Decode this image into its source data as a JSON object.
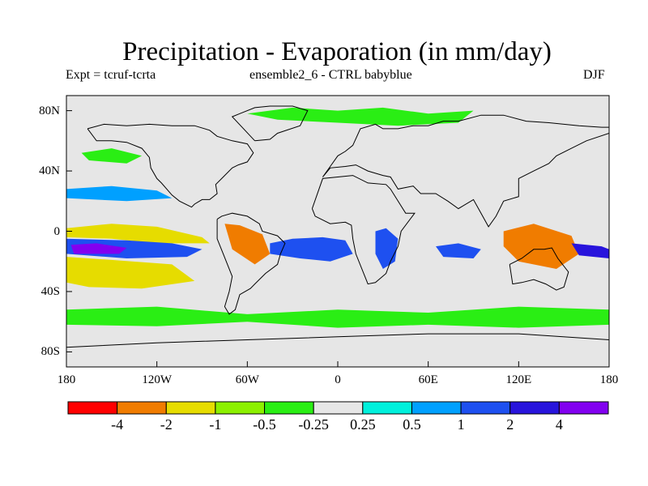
{
  "figure": {
    "title": "Precipitation - Evaporation (in mm/day)",
    "left_subtitle": "Expt = tcruf-tcrta",
    "center_subtitle": "ensemble2_6 - CTRL babyblue",
    "right_subtitle": "DJF"
  },
  "chart_data": {
    "type": "heatmap",
    "title": "Precipitation - Evaporation (in mm/day)",
    "projection": "cylindrical equidistant",
    "xlim": [
      -180,
      180
    ],
    "ylim": [
      -90,
      90
    ],
    "x_ticks": [
      {
        "value": -180,
        "label": "180"
      },
      {
        "value": -120,
        "label": "120W"
      },
      {
        "value": -60,
        "label": "60W"
      },
      {
        "value": 0,
        "label": "0"
      },
      {
        "value": 60,
        "label": "60E"
      },
      {
        "value": 120,
        "label": "120E"
      },
      {
        "value": 180,
        "label": "180"
      }
    ],
    "y_ticks": [
      {
        "value": 80,
        "label": "80N"
      },
      {
        "value": 40,
        "label": "40N"
      },
      {
        "value": 0,
        "label": "0"
      },
      {
        "value": -40,
        "label": "40S"
      },
      {
        "value": -80,
        "label": "80S"
      }
    ],
    "colorbar": {
      "levels": [
        "-4",
        "-2",
        "-1",
        "-0.5",
        "-0.25",
        "0.25",
        "0.5",
        "1",
        "2",
        "4"
      ],
      "colors": [
        "#ff0000",
        "#f07c00",
        "#e6dc00",
        "#8cf000",
        "#2aee14",
        "#e6e6e6",
        "#00f0dc",
        "#00a0ff",
        "#1e50f0",
        "#2814dc",
        "#8200f0"
      ]
    },
    "regions": [
      {
        "name": "tropical-pacific-drying-north",
        "color": "#e6dc00",
        "lon": [
          -180,
          -150,
          -120,
          -90,
          -85,
          -120,
          -150,
          -180
        ],
        "lat": [
          2,
          5,
          3,
          -4,
          -8,
          -8,
          -5,
          -4
        ]
      },
      {
        "name": "tropical-pacific-wetting",
        "color": "#1e50f0",
        "lon": [
          -180,
          -140,
          -110,
          -90,
          -100,
          -140,
          -180
        ],
        "lat": [
          -5,
          -6,
          -8,
          -12,
          -17,
          -18,
          -15
        ]
      },
      {
        "name": "central-pacific-strong-wetting",
        "color": "#8200f0",
        "lon": [
          -177,
          -160,
          -140,
          -145,
          -175
        ],
        "lat": [
          -9,
          -8,
          -11,
          -15,
          -15
        ]
      },
      {
        "name": "south-pacific-drying-band",
        "color": "#f07c00",
        "lon": [
          -180,
          -150,
          -120,
          -100,
          -130,
          -160,
          -180
        ],
        "lat": [
          -21,
          -22,
          -26,
          -30,
          -32,
          -29,
          -28
        ]
      },
      {
        "name": "south-pacific-mild-drying",
        "color": "#e6dc00",
        "lon": [
          -180,
          -150,
          -110,
          -95,
          -130,
          -165,
          -180
        ],
        "lat": [
          -17,
          -19,
          -22,
          -33,
          -38,
          -37,
          -34
        ]
      },
      {
        "name": "north-pacific-wet-band",
        "color": "#00a0ff",
        "lon": [
          -180,
          -150,
          -120,
          -110,
          -140,
          -180
        ],
        "lat": [
          28,
          30,
          27,
          22,
          20,
          22
        ]
      },
      {
        "name": "north-pacific-dry-patch",
        "color": "#2aee14",
        "lon": [
          -170,
          -150,
          -130,
          -140,
          -165
        ],
        "lat": [
          52,
          55,
          50,
          45,
          47
        ]
      },
      {
        "name": "amazon-drying",
        "color": "#f07c00",
        "lon": [
          -75,
          -65,
          -50,
          -45,
          -55,
          -70
        ],
        "lat": [
          5,
          4,
          -2,
          -15,
          -22,
          -12
        ]
      },
      {
        "name": "south-atlantic-wetting",
        "color": "#1e50f0",
        "lon": [
          -45,
          -30,
          -10,
          5,
          10,
          -5,
          -25,
          -45
        ],
        "lat": [
          -8,
          -5,
          -4,
          -6,
          -15,
          -20,
          -18,
          -15
        ]
      },
      {
        "name": "east-africa-wetting",
        "color": "#1e50f0",
        "lon": [
          25,
          32,
          40,
          38,
          30,
          25
        ],
        "lat": [
          0,
          2,
          -5,
          -20,
          -25,
          -15
        ]
      },
      {
        "name": "indian-ocean-wetting",
        "color": "#1e50f0",
        "lon": [
          65,
          80,
          95,
          90,
          70
        ],
        "lat": [
          -10,
          -8,
          -12,
          -18,
          -17
        ]
      },
      {
        "name": "maritime-continent-drying",
        "color": "#f07c00",
        "lon": [
          110,
          130,
          155,
          160,
          145,
          120,
          110
        ],
        "lat": [
          0,
          5,
          -3,
          -15,
          -25,
          -20,
          -10
        ]
      },
      {
        "name": "western-pacific-wetting",
        "color": "#2814dc",
        "lon": [
          155,
          175,
          180,
          180,
          160
        ],
        "lat": [
          -8,
          -10,
          -12,
          -18,
          -16
        ]
      },
      {
        "name": "southern-ocean-drying",
        "color": "#2aee14",
        "lon": [
          -180,
          -120,
          -60,
          0,
          60,
          120,
          180,
          180,
          120,
          60,
          0,
          -60,
          -120,
          -180
        ],
        "lat": [
          -52,
          -50,
          -55,
          -52,
          -54,
          -50,
          -52,
          -62,
          -64,
          -62,
          -64,
          -60,
          -63,
          -62
        ]
      },
      {
        "name": "arctic-drying",
        "color": "#2aee14",
        "lon": [
          -60,
          -30,
          0,
          30,
          60,
          90,
          80,
          40,
          0,
          -40
        ],
        "lat": [
          78,
          82,
          80,
          82,
          78,
          80,
          72,
          70,
          72,
          74
        ]
      }
    ]
  },
  "coastlines": [
    {
      "name": "north-america",
      "lon": [
        -166,
        -160,
        -150,
        -140,
        -130,
        -125,
        -124,
        -120,
        -117,
        -110,
        -105,
        -97,
        -95,
        -90,
        -85,
        -80,
        -81,
        -76,
        -70,
        -66,
        -60,
        -56,
        -60,
        -70,
        -80,
        -85,
        -95,
        -110,
        -125,
        -140,
        -155,
        -166
      ],
      "lat": [
        68,
        60,
        60,
        59,
        55,
        49,
        42,
        35,
        32,
        24,
        20,
        16,
        18,
        21,
        21,
        25,
        31,
        36,
        42,
        44,
        46,
        52,
        58,
        60,
        63,
        67,
        70,
        70,
        71,
        70,
        71,
        68
      ]
    },
    {
      "name": "greenland",
      "lon": [
        -55,
        -45,
        -40,
        -25,
        -20,
        -30,
        -45,
        -55,
        -65,
        -70,
        -55
      ],
      "lat": [
        60,
        61,
        65,
        70,
        80,
        83,
        83,
        82,
        78,
        76,
        60
      ]
    },
    {
      "name": "south-america",
      "lon": [
        -80,
        -77,
        -70,
        -60,
        -52,
        -50,
        -40,
        -35,
        -38,
        -40,
        -48,
        -55,
        -58,
        -65,
        -68,
        -72,
        -75,
        -72,
        -70,
        -76,
        -80,
        -80
      ],
      "lat": [
        8,
        10,
        12,
        10,
        5,
        0,
        -3,
        -8,
        -15,
        -22,
        -28,
        -35,
        -38,
        -42,
        -52,
        -55,
        -50,
        -40,
        -30,
        -15,
        -5,
        8
      ]
    },
    {
      "name": "africa",
      "lon": [
        -17,
        -10,
        0,
        10,
        20,
        32,
        35,
        45,
        51,
        42,
        40,
        35,
        32,
        25,
        20,
        18,
        12,
        10,
        9,
        5,
        -5,
        -15,
        -17
      ],
      "lat": [
        15,
        35,
        36,
        37,
        32,
        31,
        28,
        12,
        12,
        0,
        -10,
        -20,
        -28,
        -34,
        -35,
        -30,
        -15,
        -5,
        4,
        6,
        5,
        10,
        15
      ]
    },
    {
      "name": "eurasia",
      "lon": [
        -10,
        -5,
        0,
        5,
        10,
        15,
        25,
        30,
        40,
        50,
        60,
        70,
        80,
        95,
        110,
        125,
        140,
        160,
        175,
        180,
        180,
        165,
        155,
        145,
        140,
        130,
        120,
        120,
        110,
        105,
        100,
        90,
        80,
        73,
        65,
        55,
        50,
        40,
        35,
        30,
        20,
        12,
        5,
        -5,
        -10
      ],
      "lat": [
        36,
        43,
        50,
        53,
        57,
        68,
        71,
        68,
        68,
        70,
        70,
        73,
        73,
        77,
        77,
        73,
        72,
        70,
        69,
        69,
        65,
        60,
        55,
        50,
        45,
        40,
        35,
        23,
        20,
        10,
        3,
        21,
        15,
        20,
        25,
        25,
        30,
        28,
        36,
        37,
        40,
        44,
        43,
        42,
        36
      ]
    },
    {
      "name": "australia",
      "lon": [
        114,
        122,
        130,
        137,
        142,
        146,
        153,
        150,
        145,
        138,
        130,
        122,
        116,
        114
      ],
      "lat": [
        -22,
        -18,
        -12,
        -12,
        -11,
        -18,
        -27,
        -37,
        -39,
        -35,
        -32,
        -34,
        -35,
        -22
      ]
    },
    {
      "name": "antarctica",
      "lon": [
        -180,
        -120,
        -60,
        0,
        60,
        120,
        180
      ],
      "lat": [
        -77,
        -74,
        -72,
        -70,
        -68,
        -68,
        -72
      ]
    }
  ]
}
